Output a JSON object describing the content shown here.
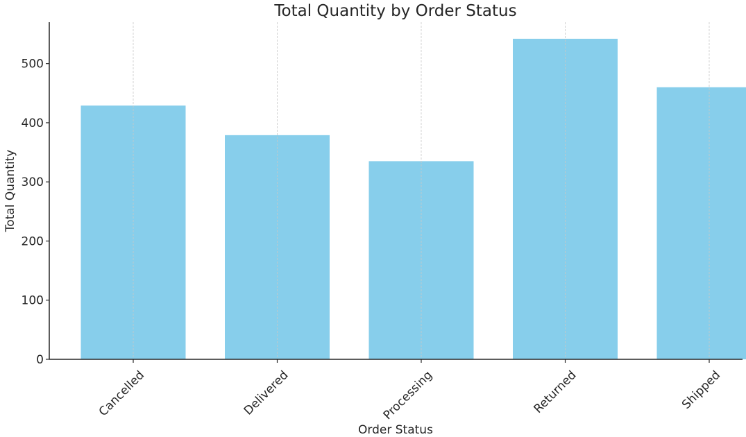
{
  "chart_data": {
    "type": "bar",
    "title": "Total Quantity by Order Status",
    "xlabel": "Order Status",
    "ylabel": "Total Quantity",
    "categories": [
      "Cancelled",
      "Delivered",
      "Processing",
      "Returned",
      "Shipped"
    ],
    "values": [
      429,
      379,
      335,
      542,
      460
    ],
    "ylim": [
      0,
      570
    ],
    "yticks": [
      0,
      100,
      200,
      300,
      400,
      500
    ],
    "grid": "x-axis vertical dashed",
    "bar_color": "#87CEEB",
    "x_tick_rotation": 45
  }
}
